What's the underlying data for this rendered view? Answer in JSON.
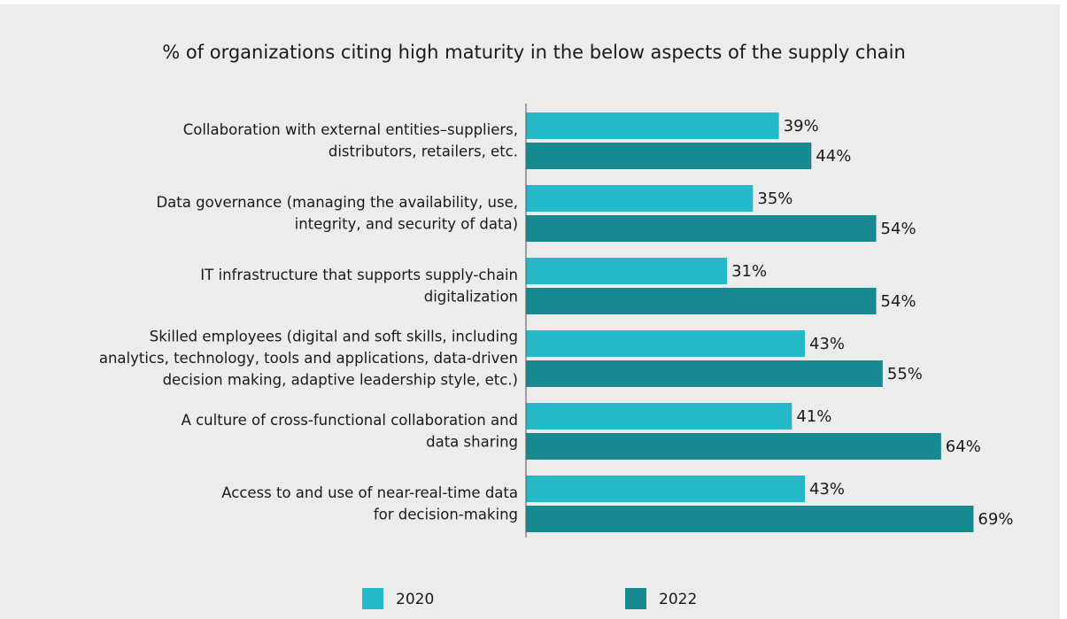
{
  "chart_data": {
    "type": "bar",
    "orientation": "horizontal",
    "title": "% of organizations citing high maturity in the below aspects of the supply chain",
    "categories": [
      "Collaboration with external entities–suppliers,\ndistributors, retailers, etc.",
      "Data governance (managing the availability, use,\nintegrity, and security of data)",
      "IT infrastructure that supports supply-chain\ndigitalization",
      "Skilled employees (digital and soft skills, including\nanalytics, technology, tools and applications, data-driven\ndecision making, adaptive leadership style, etc.)",
      "A culture of cross-functional collaboration and\ndata sharing",
      "Access to and use of near-real-time data\nfor decision-making"
    ],
    "series": [
      {
        "name": "2020",
        "color": "#25b8c8",
        "values": [
          39,
          35,
          31,
          43,
          41,
          43
        ],
        "value_labels": [
          "39%",
          "35%",
          "31%",
          "43%",
          "41%",
          "43%"
        ]
      },
      {
        "name": "2022",
        "color": "#168a90",
        "values": [
          44,
          54,
          54,
          55,
          64,
          69
        ],
        "value_labels": [
          "44%",
          "54%",
          "54%",
          "55%",
          "64%",
          "69%"
        ]
      }
    ],
    "xlim": [
      0,
      80
    ],
    "legend": "bottom"
  }
}
